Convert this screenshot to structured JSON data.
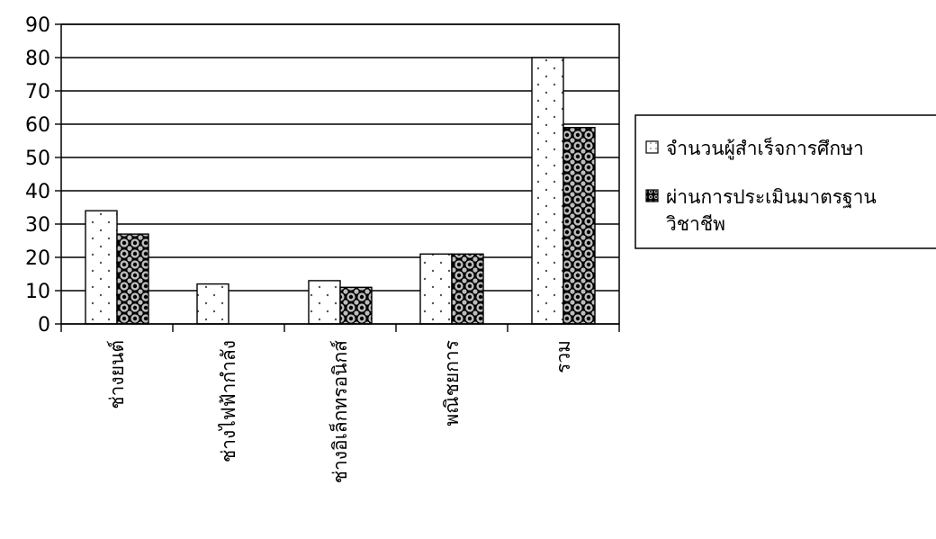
{
  "chart_data": {
    "type": "bar",
    "categories": [
      "ช่างยนต์",
      "ช่างไฟฟ้ากำลัง",
      "ช่างอิเล็กทรอนิกส์",
      "พณิชยการ",
      "รวม"
    ],
    "series": [
      {
        "name": "จำนวนผู้สำเร็จการศึกษา",
        "values": [
          34,
          12,
          13,
          21,
          80
        ],
        "pattern": "dots"
      },
      {
        "name": "ผ่านการประเมินมาตรฐานวิชาชีพ",
        "name_lines": [
          "ผ่านการประเมินมาตรฐาน",
          "วิชาชีพ"
        ],
        "values": [
          27,
          0,
          11,
          21,
          59
        ],
        "pattern": "dark-circles"
      }
    ],
    "title": "",
    "xlabel": "",
    "ylabel": "",
    "ylim": [
      0,
      90
    ],
    "yticks": [
      0,
      10,
      20,
      30,
      40,
      50,
      60,
      70,
      80,
      90
    ],
    "grid": true,
    "legend_position": "right"
  }
}
